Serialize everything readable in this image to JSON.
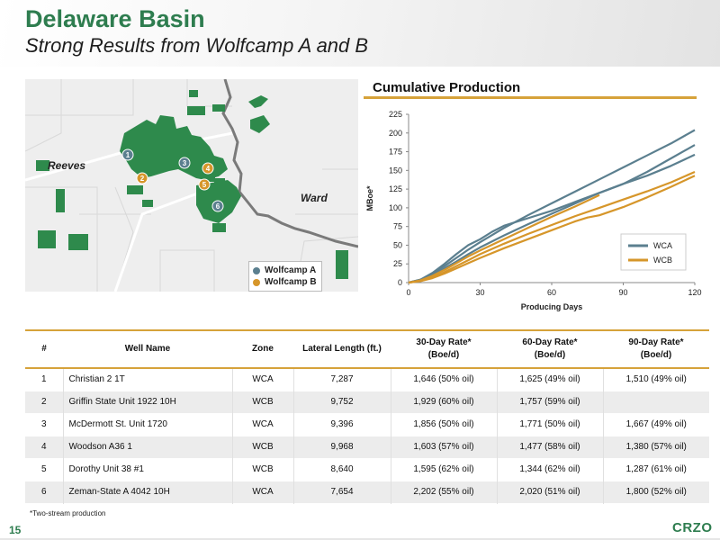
{
  "header": {
    "title": "Delaware Basin",
    "subtitle": "Strong Results from Wolfcamp A and B"
  },
  "map": {
    "labels": {
      "county_west": "Reeves",
      "county_east": "Ward"
    },
    "markers": [
      "1",
      "2",
      "3",
      "4",
      "5",
      "6"
    ],
    "legend": {
      "wca": "Wolfcamp A",
      "wcb": "Wolfcamp B"
    },
    "colors": {
      "acreage": "#2e8a4c",
      "wca": "#5b7f8f",
      "wcb": "#d6962a"
    }
  },
  "chart_title": "Cumulative Production",
  "chart_data": {
    "type": "line",
    "xlabel": "Producing Days",
    "ylabel": "MBoe*",
    "xlim": [
      0,
      120
    ],
    "ylim": [
      0,
      225
    ],
    "xticks": [
      0,
      30,
      60,
      90,
      120
    ],
    "yticks": [
      0,
      25,
      50,
      75,
      100,
      125,
      150,
      175,
      200,
      225
    ],
    "legend_position": "bottom-right",
    "grid": false,
    "series": [
      {
        "name": "WCA",
        "color": "#5b7f8f",
        "x": [
          0,
          5,
          10,
          15,
          20,
          25,
          30,
          40,
          50,
          60,
          70,
          80,
          90,
          100,
          110,
          120
        ],
        "y": [
          0,
          4,
          12,
          22,
          33,
          44,
          54,
          73,
          90,
          106,
          122,
          138,
          154,
          170,
          186,
          204
        ]
      },
      {
        "name": "WCA",
        "color": "#5b7f8f",
        "x": [
          0,
          5,
          10,
          15,
          20,
          25,
          30,
          35,
          40,
          50,
          60,
          70,
          80,
          90,
          100,
          110,
          120
        ],
        "y": [
          0,
          4,
          13,
          25,
          38,
          50,
          58,
          68,
          76,
          86,
          96,
          108,
          120,
          132,
          148,
          166,
          184
        ]
      },
      {
        "name": "WCA",
        "color": "#5b7f8f",
        "x": [
          0,
          5,
          10,
          15,
          20,
          25,
          30,
          40,
          50,
          60,
          70,
          80,
          90,
          100,
          110,
          120
        ],
        "y": [
          0,
          3,
          10,
          19,
          28,
          38,
          47,
          63,
          78,
          92,
          106,
          120,
          132,
          143,
          156,
          171
        ]
      },
      {
        "name": "WCB",
        "color": "#d6962a",
        "x": [
          0,
          5,
          10,
          15,
          20,
          25,
          30,
          40,
          50,
          60,
          70,
          80,
          90,
          100,
          110,
          120
        ],
        "y": [
          0,
          2,
          7,
          14,
          22,
          30,
          38,
          52,
          65,
          77,
          89,
          100,
          111,
          122,
          134,
          148
        ]
      },
      {
        "name": "WCB",
        "color": "#d6962a",
        "x": [
          0,
          5,
          10,
          15,
          20,
          25,
          30,
          40,
          50,
          60,
          70,
          75,
          80,
          90,
          100,
          110,
          120
        ],
        "y": [
          0,
          2,
          6,
          12,
          19,
          26,
          33,
          46,
          58,
          70,
          82,
          87,
          90,
          101,
          114,
          128,
          143
        ]
      },
      {
        "name": "WCB",
        "color": "#d6962a",
        "x": [
          0,
          5,
          10,
          15,
          20,
          25,
          30,
          40,
          50,
          60,
          70,
          80
        ],
        "y": [
          0,
          3,
          9,
          17,
          26,
          35,
          43,
          58,
          73,
          88,
          102,
          117
        ]
      }
    ]
  },
  "table": {
    "headers": [
      "#",
      "Well Name",
      "Zone",
      "Lateral Length (ft.)",
      "30-Day Rate*\n(Boe/d)",
      "60-Day Rate*\n(Boe/d)",
      "90-Day Rate*\n(Boe/d)"
    ],
    "rows": [
      [
        "1",
        "Christian 2 1T",
        "WCA",
        "7,287",
        "1,646 (50% oil)",
        "1,625 (49% oil)",
        "1,510 (49% oil)"
      ],
      [
        "2",
        "Griffin State Unit 1922 10H",
        "WCB",
        "9,752",
        "1,929 (60% oil)",
        "1,757 (59% oil)",
        ""
      ],
      [
        "3",
        "McDermott St. Unit 1720",
        "WCA",
        "9,396",
        "1,856 (50% oil)",
        "1,771 (50% oil)",
        "1,667 (49% oil)"
      ],
      [
        "4",
        "Woodson A36 1",
        "WCB",
        "9,968",
        "1,603 (57% oil)",
        "1,477 (58% oil)",
        "1,380 (57% oil)"
      ],
      [
        "5",
        "Dorothy Unit 38 #1",
        "WCB",
        "8,640",
        "1,595 (62% oil)",
        "1,344 (62% oil)",
        "1,287 (61% oil)"
      ],
      [
        "6",
        "Zeman-State A 4042 10H",
        "WCA",
        "7,654",
        "2,202 (55% oil)",
        "2,020 (51% oil)",
        "1,800 (52% oil)"
      ]
    ]
  },
  "footnote": "*Two-stream production",
  "page_number": "15",
  "logo": "CRZO"
}
